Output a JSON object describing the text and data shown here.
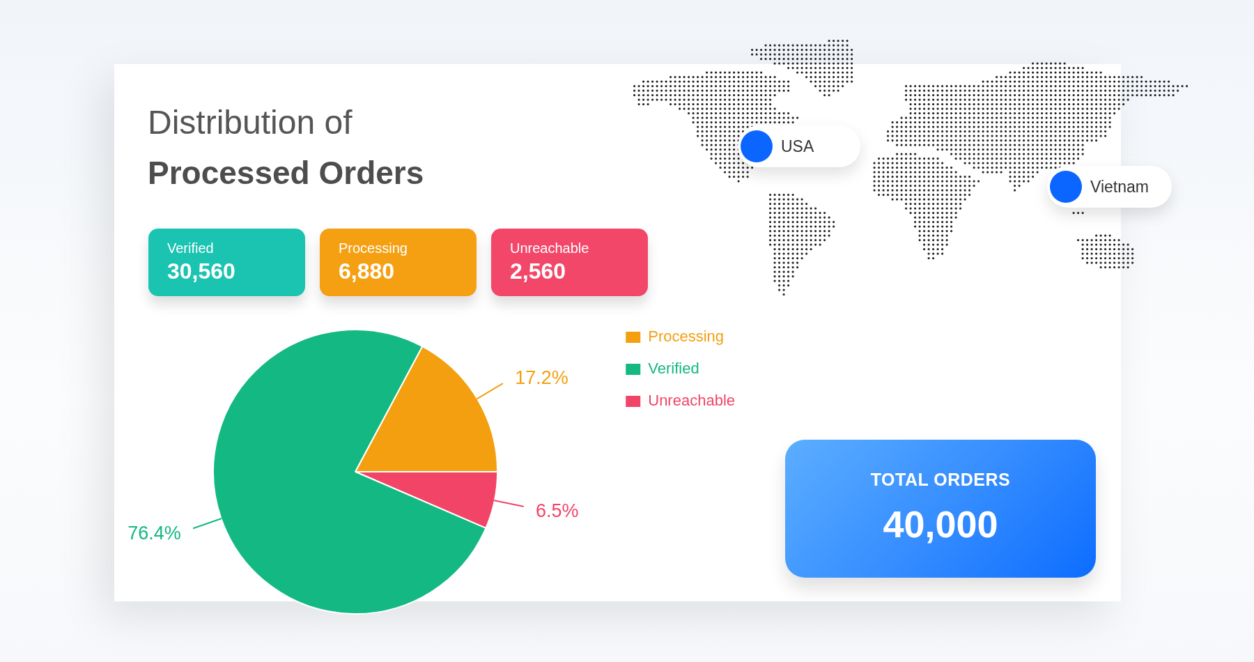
{
  "chart_data": [
    {
      "type": "pie",
      "title": "Distribution of\nProcessed Orders",
      "categories": [
        "Unreachable",
        "Verified",
        "Processing"
      ],
      "values": [
        6.5,
        76.4,
        17.2
      ],
      "colors": [
        "#f24466",
        "#13b882",
        "#f39f10"
      ],
      "value_labels": [
        "6.5%",
        "76.4%",
        "17.2%"
      ],
      "legend": "top right"
    },
    {
      "type": "other",
      "categories": [
        "Verified",
        "Processing",
        "Unreachable"
      ],
      "value_labels": [
        "30,560",
        "6,880",
        "2,560"
      ],
      "colors": [
        "#1bc3b1",
        "#f5a013",
        "#f3476a"
      ]
    },
    {
      "type": "other",
      "annotations": [
        "USA",
        "Vietnam"
      ],
      "colors": [
        "#0a66ff",
        "#0a66ff"
      ]
    },
    {
      "type": "other",
      "title": "TOTAL ORDERS",
      "value_labels": [
        "40,000"
      ],
      "colors": [
        "#0a6cff"
      ]
    }
  ]
}
